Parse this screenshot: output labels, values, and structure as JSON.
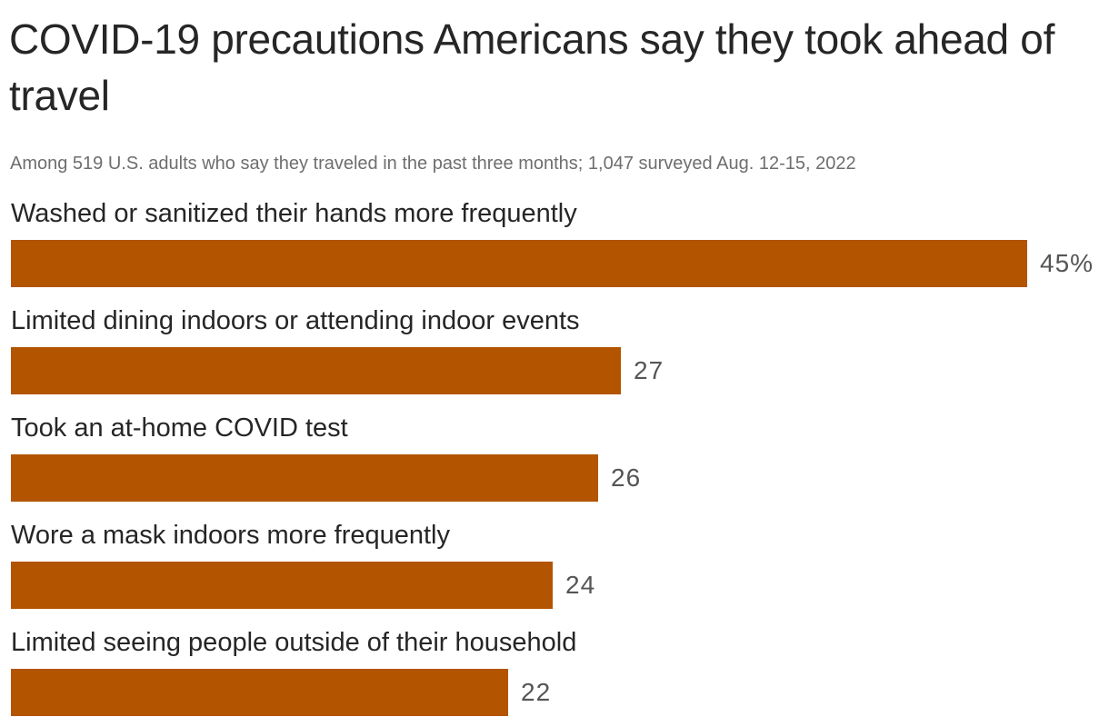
{
  "title": "COVID-19 precautions Americans say they took ahead of travel",
  "subtitle": "Among 519 U.S. adults who say they traveled in the past three months; 1,047 surveyed Aug. 12-15, 2022",
  "colors": {
    "bar": "#b35400",
    "value_text": "#555555",
    "label_text": "#262626",
    "subtitle_text": "#6e6e6e"
  },
  "chart_data": {
    "type": "bar",
    "orientation": "horizontal",
    "title": "COVID-19 precautions Americans say they took ahead of travel",
    "subtitle": "Among 519 U.S. adults who say they traveled in the past three months; 1,047 surveyed Aug. 12-15, 2022",
    "categories": [
      "Washed or sanitized their hands more frequently",
      "Limited dining indoors or attending indoor events",
      "Took an at-home COVID test",
      "Wore a mask indoors more frequently",
      "Limited seeing people outside of their household"
    ],
    "values": [
      45,
      27,
      26,
      24,
      22
    ],
    "value_labels": [
      "45%",
      "27",
      "26",
      "24",
      "22"
    ],
    "unit": "%",
    "xlim": [
      0,
      45
    ],
    "grid": false,
    "legend": "none"
  }
}
